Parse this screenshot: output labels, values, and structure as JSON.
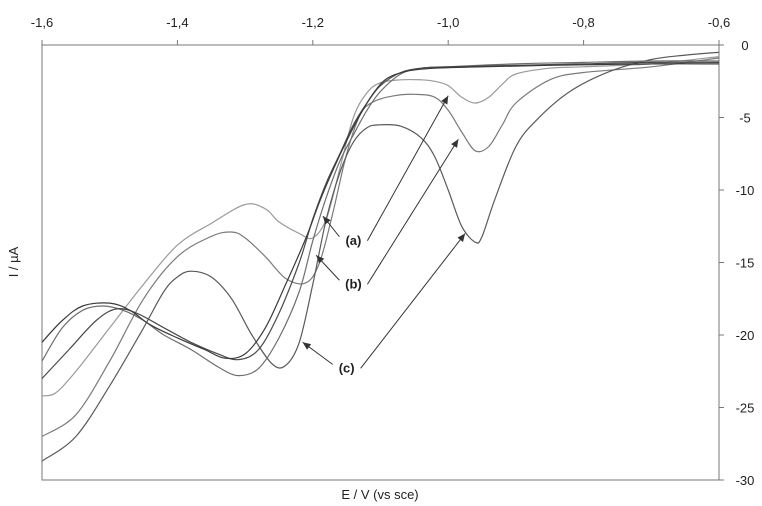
{
  "chart_data": {
    "type": "line",
    "xlabel": "E / V (vs sce)",
    "ylabel": "I / µA",
    "xlim": [
      -1.6,
      -0.6
    ],
    "ylim": [
      -30,
      0
    ],
    "x_ticks": [
      "-1,6",
      "-1,4",
      "-1,2",
      "-1,0",
      "-0,8",
      "-0,6"
    ],
    "y_ticks": [
      "0",
      "-5",
      "-10",
      "-15",
      "-20",
      "-25",
      "-30"
    ],
    "x_ticks_position": "top",
    "y_ticks_position": "right",
    "grid": false,
    "legend": "none",
    "line_color": "#444444",
    "annotations": [
      {
        "text": "(a)",
        "text_x": -1.14,
        "text_y": -13.5,
        "arrows": [
          {
            "x": -1.185,
            "y": -11.8
          },
          {
            "x": -1.0,
            "y": -3.5
          }
        ]
      },
      {
        "text": "(b)",
        "text_x": -1.14,
        "text_y": -16.5,
        "arrows": [
          {
            "x": -1.195,
            "y": -14.5
          },
          {
            "x": -0.985,
            "y": -6.5
          }
        ]
      },
      {
        "text": "(c)",
        "text_x": -1.15,
        "text_y": -22.3,
        "arrows": [
          {
            "x": -1.215,
            "y": -20.5
          },
          {
            "x": -0.975,
            "y": -13.0
          }
        ]
      }
    ],
    "series": [
      {
        "points": [
          [
            -1.6,
            -24.2
          ],
          [
            -1.58,
            -24.0
          ],
          [
            -1.55,
            -22.5
          ],
          [
            -1.5,
            -19.5
          ],
          [
            -1.45,
            -16.5
          ],
          [
            -1.4,
            -13.8
          ],
          [
            -1.35,
            -12.3
          ],
          [
            -1.3,
            -11.0
          ],
          [
            -1.27,
            -11.3
          ],
          [
            -1.25,
            -12.2
          ],
          [
            -1.22,
            -13.0
          ],
          [
            -1.2,
            -13.3
          ],
          [
            -1.18,
            -12.0
          ],
          [
            -1.16,
            -8.5
          ],
          [
            -1.14,
            -5.0
          ],
          [
            -1.12,
            -3.3
          ],
          [
            -1.1,
            -2.6
          ],
          [
            -1.07,
            -2.4
          ],
          [
            -1.04,
            -2.4
          ],
          [
            -1.02,
            -2.5
          ],
          [
            -1.0,
            -2.8
          ],
          [
            -0.98,
            -3.6
          ],
          [
            -0.96,
            -4.0
          ],
          [
            -0.94,
            -3.6
          ],
          [
            -0.92,
            -2.7
          ],
          [
            -0.9,
            -2.0
          ],
          [
            -0.85,
            -1.6
          ],
          [
            -0.8,
            -1.5
          ],
          [
            -0.7,
            -1.3
          ],
          [
            -0.6,
            -0.8
          ]
        ]
      },
      {
        "points": [
          [
            -1.6,
            -27.0
          ],
          [
            -1.55,
            -25.5
          ],
          [
            -1.5,
            -21.8
          ],
          [
            -1.45,
            -17.5
          ],
          [
            -1.4,
            -14.6
          ],
          [
            -1.35,
            -13.2
          ],
          [
            -1.32,
            -12.9
          ],
          [
            -1.3,
            -13.3
          ],
          [
            -1.27,
            -14.6
          ],
          [
            -1.24,
            -16.1
          ],
          [
            -1.21,
            -16.4
          ],
          [
            -1.19,
            -15.0
          ],
          [
            -1.17,
            -11.5
          ],
          [
            -1.15,
            -7.5
          ],
          [
            -1.13,
            -4.8
          ],
          [
            -1.11,
            -3.9
          ],
          [
            -1.08,
            -3.5
          ],
          [
            -1.05,
            -3.4
          ],
          [
            -1.02,
            -3.6
          ],
          [
            -1.0,
            -4.5
          ],
          [
            -0.98,
            -6.0
          ],
          [
            -0.96,
            -7.3
          ],
          [
            -0.94,
            -7.0
          ],
          [
            -0.92,
            -5.5
          ],
          [
            -0.9,
            -4.0
          ],
          [
            -0.85,
            -2.4
          ],
          [
            -0.8,
            -1.9
          ],
          [
            -0.7,
            -1.5
          ],
          [
            -0.6,
            -0.9
          ]
        ]
      },
      {
        "points": [
          [
            -1.6,
            -28.7
          ],
          [
            -1.55,
            -27.0
          ],
          [
            -1.5,
            -23.5
          ],
          [
            -1.45,
            -19.5
          ],
          [
            -1.42,
            -17.0
          ],
          [
            -1.4,
            -16.0
          ],
          [
            -1.38,
            -15.6
          ],
          [
            -1.35,
            -16.0
          ],
          [
            -1.32,
            -17.5
          ],
          [
            -1.29,
            -20.0
          ],
          [
            -1.26,
            -22.0
          ],
          [
            -1.24,
            -22.1
          ],
          [
            -1.22,
            -20.5
          ],
          [
            -1.2,
            -16.5
          ],
          [
            -1.18,
            -12.0
          ],
          [
            -1.16,
            -8.8
          ],
          [
            -1.14,
            -6.7
          ],
          [
            -1.12,
            -5.7
          ],
          [
            -1.1,
            -5.5
          ],
          [
            -1.07,
            -5.6
          ],
          [
            -1.04,
            -6.4
          ],
          [
            -1.02,
            -7.7
          ],
          [
            -1.0,
            -10.0
          ],
          [
            -0.98,
            -12.5
          ],
          [
            -0.96,
            -13.6
          ],
          [
            -0.95,
            -13.2
          ],
          [
            -0.93,
            -10.5
          ],
          [
            -0.9,
            -7.0
          ],
          [
            -0.87,
            -5.2
          ],
          [
            -0.82,
            -3.2
          ],
          [
            -0.76,
            -1.8
          ],
          [
            -0.7,
            -1.0
          ],
          [
            -0.65,
            -0.7
          ],
          [
            -0.6,
            -0.5
          ]
        ]
      },
      {
        "points": [
          [
            -1.6,
            -21.8
          ],
          [
            -1.57,
            -19.5
          ],
          [
            -1.54,
            -18.3
          ],
          [
            -1.51,
            -18.0
          ],
          [
            -1.48,
            -18.3
          ],
          [
            -1.45,
            -19.0
          ],
          [
            -1.42,
            -20.0
          ],
          [
            -1.38,
            -21.0
          ],
          [
            -1.34,
            -22.2
          ],
          [
            -1.31,
            -22.8
          ],
          [
            -1.28,
            -22.3
          ],
          [
            -1.25,
            -20.2
          ],
          [
            -1.22,
            -17.0
          ],
          [
            -1.2,
            -13.5
          ],
          [
            -1.18,
            -10.5
          ],
          [
            -1.16,
            -8.0
          ],
          [
            -1.14,
            -6.2
          ],
          [
            -1.12,
            -4.5
          ],
          [
            -1.1,
            -3.2
          ],
          [
            -1.07,
            -2.0
          ],
          [
            -1.04,
            -1.6
          ],
          [
            -1.0,
            -1.5
          ],
          [
            -0.9,
            -1.3
          ],
          [
            -0.8,
            -1.2
          ],
          [
            -0.7,
            -1.1
          ],
          [
            -0.6,
            -1.1
          ]
        ]
      },
      {
        "points": [
          [
            -1.6,
            -23.0
          ],
          [
            -1.56,
            -21.0
          ],
          [
            -1.52,
            -19.0
          ],
          [
            -1.49,
            -18.2
          ],
          [
            -1.46,
            -18.5
          ],
          [
            -1.42,
            -19.5
          ],
          [
            -1.38,
            -20.5
          ],
          [
            -1.34,
            -21.3
          ],
          [
            -1.31,
            -21.7
          ],
          [
            -1.28,
            -21.0
          ],
          [
            -1.25,
            -18.5
          ],
          [
            -1.22,
            -15.0
          ],
          [
            -1.2,
            -12.0
          ],
          [
            -1.18,
            -9.5
          ],
          [
            -1.16,
            -7.5
          ],
          [
            -1.14,
            -5.5
          ],
          [
            -1.12,
            -4.0
          ],
          [
            -1.1,
            -2.8
          ],
          [
            -1.07,
            -1.9
          ],
          [
            -1.04,
            -1.6
          ],
          [
            -1.0,
            -1.5
          ],
          [
            -0.9,
            -1.4
          ],
          [
            -0.8,
            -1.3
          ],
          [
            -0.7,
            -1.2
          ],
          [
            -0.6,
            -1.2
          ]
        ]
      },
      {
        "points": [
          [
            -1.6,
            -20.5
          ],
          [
            -1.57,
            -19.0
          ],
          [
            -1.54,
            -18.0
          ],
          [
            -1.5,
            -17.8
          ],
          [
            -1.47,
            -18.3
          ],
          [
            -1.44,
            -19.3
          ],
          [
            -1.4,
            -20.2
          ],
          [
            -1.36,
            -21.0
          ],
          [
            -1.33,
            -21.6
          ],
          [
            -1.3,
            -21.3
          ],
          [
            -1.27,
            -19.5
          ],
          [
            -1.24,
            -16.5
          ],
          [
            -1.21,
            -13.3
          ],
          [
            -1.19,
            -10.8
          ],
          [
            -1.17,
            -8.6
          ],
          [
            -1.15,
            -6.6
          ],
          [
            -1.13,
            -4.8
          ],
          [
            -1.11,
            -3.3
          ],
          [
            -1.09,
            -2.3
          ],
          [
            -1.06,
            -1.8
          ],
          [
            -1.02,
            -1.6
          ],
          [
            -0.95,
            -1.5
          ],
          [
            -0.85,
            -1.4
          ],
          [
            -0.7,
            -1.3
          ],
          [
            -0.6,
            -1.3
          ]
        ]
      }
    ]
  }
}
